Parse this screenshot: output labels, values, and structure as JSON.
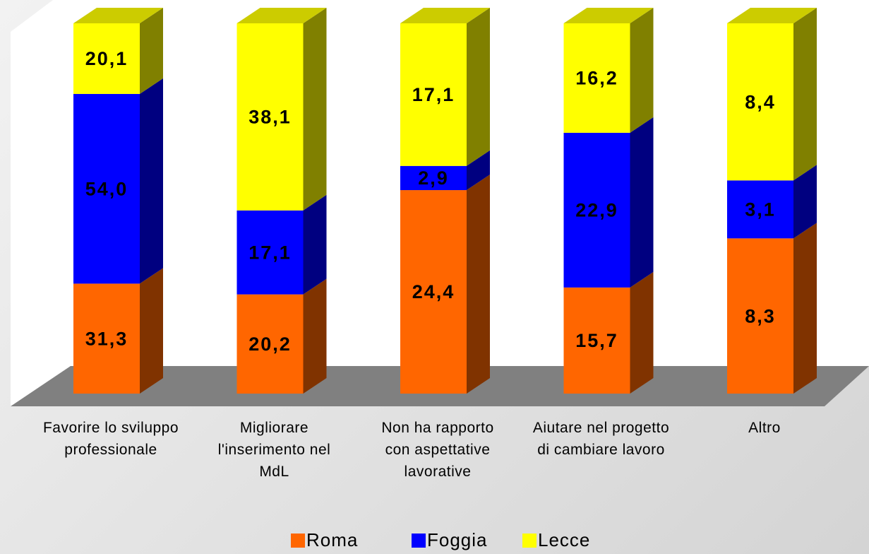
{
  "chart_data": {
    "type": "bar",
    "stacking": "percent",
    "categories": [
      "Favorire lo sviluppo professionale",
      "Migliorare l'inserimento nel MdL",
      "Non ha rapporto con aspettative lavorative",
      "Aiutare nel progetto di cambiare lavoro",
      "Altro"
    ],
    "series": [
      {
        "name": "Roma",
        "color": "#ff6600",
        "values": [
          31.3,
          20.2,
          24.4,
          15.7,
          8.3
        ],
        "value_labels": [
          "31,3",
          "20,2",
          "24,4",
          "15,7",
          "8,3"
        ]
      },
      {
        "name": "Foggia",
        "color": "#0000ff",
        "values": [
          54.0,
          17.1,
          2.9,
          22.9,
          3.1
        ],
        "value_labels": [
          "54,0",
          "17,1",
          "2,9",
          "22,9",
          "3,1"
        ]
      },
      {
        "name": "Lecce",
        "color": "#ffff00",
        "values": [
          20.1,
          38.1,
          17.1,
          16.2,
          8.4
        ],
        "value_labels": [
          "20,1",
          "38,1",
          "17,1",
          "16,2",
          "8,4"
        ]
      }
    ],
    "legend": "bottom"
  }
}
